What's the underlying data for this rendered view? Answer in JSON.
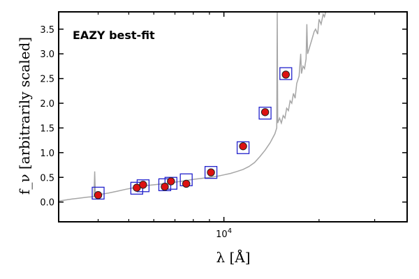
{
  "chart_data": {
    "type": "scatter",
    "x_scale": "log",
    "xlim": [
      3000,
      38000
    ],
    "ylim": [
      -0.4,
      3.85
    ],
    "xlabel": "λ [Å]",
    "ylabel": "f_ν [arbitrarily scaled]",
    "x_tick_labels": [
      {
        "value": 10000,
        "label": "10",
        "sup": "4"
      }
    ],
    "y_ticks": [
      0.0,
      0.5,
      1.0,
      1.5,
      2.0,
      2.5,
      3.0,
      3.5
    ],
    "y_tick_labels": [
      "0.0",
      "0.5",
      "1.0",
      "1.5",
      "2.0",
      "2.5",
      "3.0",
      "3.5"
    ],
    "annotations": [
      {
        "text": "EAZY best-fit",
        "color": "#ee1111",
        "position": "top-left"
      }
    ],
    "colors": {
      "spectrum": "#a6a6a6",
      "model_box": "#2222cc",
      "observed_point": "#dd1111",
      "point_edge": "#222222"
    },
    "series": [
      {
        "role": "best-fit model template spectrum",
        "style": "line",
        "points": [
          [
            3000,
            0.02
          ],
          [
            3150,
            0.04
          ],
          [
            3300,
            0.06
          ],
          [
            3500,
            0.08
          ],
          [
            3700,
            0.1
          ],
          [
            3880,
            0.11
          ],
          [
            3900,
            0.62
          ],
          [
            3920,
            0.13
          ],
          [
            4100,
            0.16
          ],
          [
            4300,
            0.18
          ],
          [
            4600,
            0.22
          ],
          [
            4900,
            0.26
          ],
          [
            5200,
            0.29
          ],
          [
            5500,
            0.32
          ],
          [
            5800,
            0.34
          ],
          [
            6200,
            0.36
          ],
          [
            6600,
            0.38
          ],
          [
            7000,
            0.4
          ],
          [
            7500,
            0.43
          ],
          [
            8000,
            0.46
          ],
          [
            8500,
            0.48
          ],
          [
            9000,
            0.5
          ],
          [
            9500,
            0.52
          ],
          [
            10000,
            0.55
          ],
          [
            10500,
            0.58
          ],
          [
            11000,
            0.62
          ],
          [
            11500,
            0.66
          ],
          [
            12000,
            0.72
          ],
          [
            12500,
            0.8
          ],
          [
            13000,
            0.92
          ],
          [
            13500,
            1.05
          ],
          [
            14000,
            1.2
          ],
          [
            14500,
            1.38
          ],
          [
            14700,
            1.5
          ],
          [
            14750,
            3.85
          ],
          [
            14800,
            1.6
          ],
          [
            15000,
            1.7
          ],
          [
            15200,
            1.6
          ],
          [
            15400,
            1.75
          ],
          [
            15600,
            1.7
          ],
          [
            15800,
            1.9
          ],
          [
            16000,
            1.85
          ],
          [
            16200,
            2.05
          ],
          [
            16400,
            2.0
          ],
          [
            16600,
            2.2
          ],
          [
            16800,
            2.1
          ],
          [
            17000,
            2.4
          ],
          [
            17300,
            2.55
          ],
          [
            17500,
            3.0
          ],
          [
            17600,
            2.6
          ],
          [
            17800,
            2.75
          ],
          [
            18000,
            2.7
          ],
          [
            18200,
            2.9
          ],
          [
            18300,
            3.6
          ],
          [
            18400,
            3.0
          ],
          [
            18600,
            3.1
          ],
          [
            18800,
            3.2
          ],
          [
            19000,
            3.3
          ],
          [
            19300,
            3.45
          ],
          [
            19500,
            3.5
          ],
          [
            19800,
            3.4
          ],
          [
            20000,
            3.7
          ],
          [
            20300,
            3.6
          ],
          [
            20600,
            3.8
          ],
          [
            20800,
            3.75
          ],
          [
            21000,
            3.85
          ]
        ]
      },
      {
        "role": "model synthetic photometry",
        "style": "open-square",
        "points": [
          [
            4000,
            0.18
          ],
          [
            5300,
            0.28
          ],
          [
            5550,
            0.33
          ],
          [
            6500,
            0.35
          ],
          [
            6800,
            0.38
          ],
          [
            7600,
            0.45
          ],
          [
            9100,
            0.6
          ],
          [
            11500,
            1.1
          ],
          [
            13500,
            1.8
          ],
          [
            15700,
            2.6
          ]
        ]
      },
      {
        "role": "observed photometry",
        "style": "filled-circle",
        "points": [
          [
            4000,
            0.14
          ],
          [
            5300,
            0.29
          ],
          [
            5550,
            0.35
          ],
          [
            6500,
            0.31
          ],
          [
            6800,
            0.42
          ],
          [
            7600,
            0.37
          ],
          [
            9100,
            0.6
          ],
          [
            11500,
            1.13
          ],
          [
            13500,
            1.82
          ],
          [
            15700,
            2.58
          ]
        ]
      }
    ]
  }
}
